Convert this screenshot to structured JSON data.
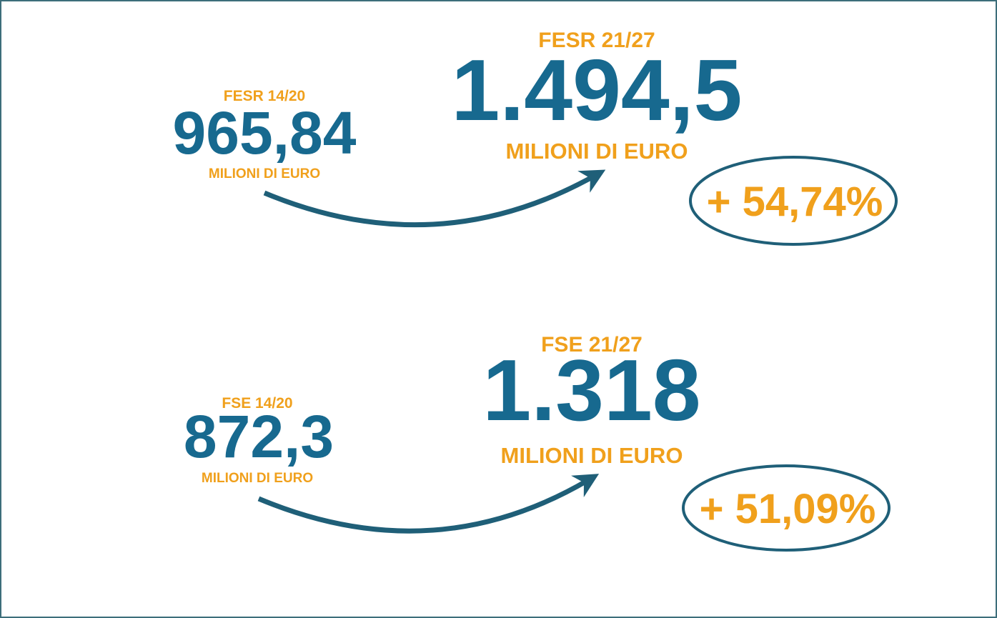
{
  "blocks": [
    {
      "old": {
        "label": "FESR 14/20",
        "value": "965,84",
        "unit": "MILIONI DI EURO"
      },
      "new": {
        "label": "FESR 21/27",
        "value": "1.494,5",
        "unit": "MILIONI DI EURO"
      },
      "change": "+ 54,74%"
    },
    {
      "old": {
        "label": "FSE 14/20",
        "value": "872,3",
        "unit": "MILIONI DI EURO"
      },
      "new": {
        "label": "FSE 21/27",
        "value": "1.318",
        "unit": "MILIONI DI EURO"
      },
      "change": "+ 51,09%"
    }
  ]
}
